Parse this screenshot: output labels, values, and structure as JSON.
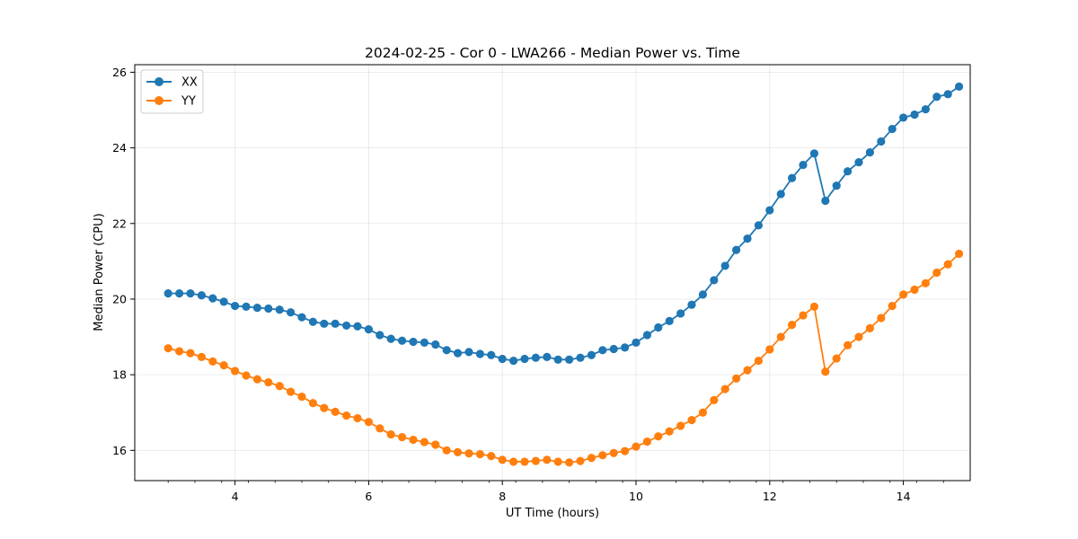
{
  "chart_data": {
    "type": "line",
    "title": "2024-02-25 - Cor 0 - LWA266 - Median Power vs. Time",
    "xlabel": "UT Time (hours)",
    "ylabel": "Median Power (CPU)",
    "xlim": [
      2.5,
      15.0
    ],
    "ylim": [
      15.2,
      26.2
    ],
    "xticks": [
      4,
      6,
      8,
      10,
      12,
      14
    ],
    "xtick_labels": [
      "4",
      "6",
      "8",
      "10",
      "12",
      "14"
    ],
    "yticks": [
      16,
      18,
      20,
      22,
      24,
      26
    ],
    "ytick_labels": [
      "16",
      "18",
      "20",
      "22",
      "24",
      "26"
    ],
    "grid": true,
    "legend_position": "top-left",
    "x": [
      3.0,
      3.167,
      3.333,
      3.5,
      3.667,
      3.833,
      4.0,
      4.167,
      4.333,
      4.5,
      4.667,
      4.833,
      5.0,
      5.167,
      5.333,
      5.5,
      5.667,
      5.833,
      6.0,
      6.167,
      6.333,
      6.5,
      6.667,
      6.833,
      7.0,
      7.167,
      7.333,
      7.5,
      7.667,
      7.833,
      8.0,
      8.167,
      8.333,
      8.5,
      8.667,
      8.833,
      9.0,
      9.167,
      9.333,
      9.5,
      9.667,
      9.833,
      10.0,
      10.167,
      10.333,
      10.5,
      10.667,
      10.833,
      11.0,
      11.167,
      11.333,
      11.5,
      11.667,
      11.833,
      12.0,
      12.167,
      12.333,
      12.5,
      12.667,
      12.833,
      13.0,
      13.167,
      13.333,
      13.5,
      13.667,
      13.833,
      14.0,
      14.167,
      14.333,
      14.5,
      14.667,
      14.833
    ],
    "series": [
      {
        "name": "XX",
        "color": "#1f77b4",
        "values": [
          20.15,
          20.15,
          20.15,
          20.1,
          20.02,
          19.93,
          19.82,
          19.8,
          19.77,
          19.75,
          19.72,
          19.65,
          19.52,
          19.4,
          19.35,
          19.35,
          19.3,
          19.28,
          19.2,
          19.05,
          18.95,
          18.9,
          18.87,
          18.85,
          18.8,
          18.65,
          18.57,
          18.6,
          18.55,
          18.52,
          18.42,
          18.37,
          18.42,
          18.45,
          18.47,
          18.4,
          18.4,
          18.45,
          18.52,
          18.65,
          18.68,
          18.72,
          18.85,
          19.05,
          19.25,
          19.42,
          19.62,
          19.85,
          20.12,
          20.5,
          20.88,
          21.3,
          21.6,
          21.95,
          22.35,
          22.78,
          23.2,
          23.55,
          23.85,
          22.6,
          23.0,
          23.38,
          23.62,
          23.88,
          24.17,
          24.5,
          24.8,
          24.88,
          25.02,
          25.35,
          25.42,
          25.62
        ]
      },
      {
        "name": "YY",
        "color": "#ff7f0e",
        "values": [
          18.7,
          18.62,
          18.57,
          18.47,
          18.35,
          18.25,
          18.1,
          17.98,
          17.88,
          17.8,
          17.7,
          17.55,
          17.42,
          17.25,
          17.12,
          17.02,
          16.92,
          16.85,
          16.75,
          16.58,
          16.42,
          16.35,
          16.28,
          16.22,
          16.15,
          16.0,
          15.95,
          15.92,
          15.9,
          15.85,
          15.75,
          15.7,
          15.7,
          15.72,
          15.75,
          15.7,
          15.68,
          15.72,
          15.8,
          15.87,
          15.93,
          15.98,
          16.1,
          16.23,
          16.37,
          16.5,
          16.65,
          16.8,
          17.0,
          17.33,
          17.62,
          17.9,
          18.12,
          18.37,
          18.67,
          19.0,
          19.32,
          19.57,
          19.8,
          18.08,
          18.43,
          18.78,
          19.0,
          19.23,
          19.5,
          19.82,
          20.12,
          20.25,
          20.42,
          20.7,
          20.92,
          21.2
        ]
      }
    ]
  }
}
